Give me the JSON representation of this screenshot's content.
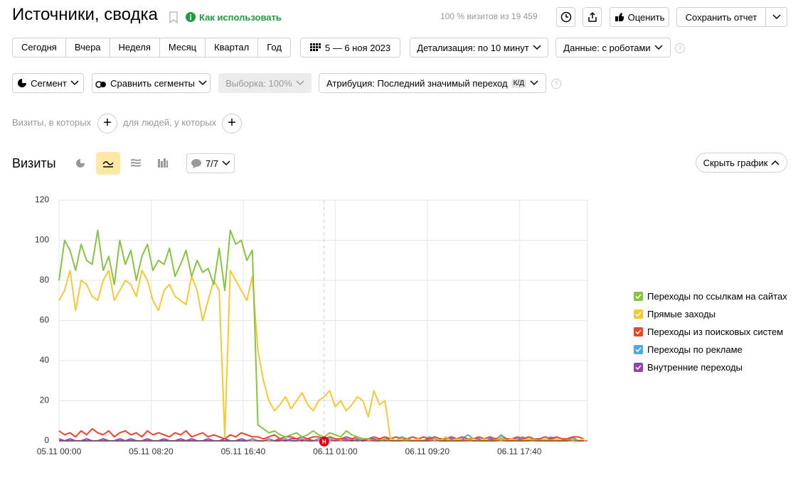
{
  "header": {
    "title": "Источники, сводка",
    "help": "Как использовать",
    "visits_share": "100 % визитов из 19 459",
    "rate": "Оценить",
    "save": "Сохранить отчет"
  },
  "periods": [
    "Сегодня",
    "Вчера",
    "Неделя",
    "Месяц",
    "Квартал",
    "Год"
  ],
  "date_range": "5 — 6 ноя 2023",
  "detail": "Детализация: по 10 минут",
  "data_mode": "Данные: с роботами",
  "segment": "Сегмент",
  "compare": "Сравнить сегменты",
  "sample": "Выборка: 100%",
  "attribution": "Атрибуция: Последний значимый переход",
  "attribution_badge": "К/Д",
  "filters": {
    "visits": "Визиты, в которых",
    "people": "для людей, у которых"
  },
  "report": {
    "title": "Визиты",
    "series_count": "7/7",
    "hide": "Скрыть график"
  },
  "chart_data": {
    "type": "line",
    "x": [
      0,
      30,
      60,
      90,
      120,
      150,
      180,
      210,
      240,
      270,
      300,
      330,
      360,
      390,
      420,
      450,
      480,
      510,
      540,
      570,
      600,
      630,
      660,
      690,
      720,
      750,
      780,
      810,
      840,
      870,
      900,
      930,
      960,
      990,
      1020,
      1050,
      1080,
      1110,
      1140,
      1170,
      1200,
      1230,
      1260,
      1290,
      1320,
      1350,
      1380,
      1410,
      1440,
      1470,
      1500,
      1530,
      1560,
      1590,
      1620,
      1650,
      1680,
      1710,
      1740,
      1770,
      1800,
      1830,
      1860,
      1890,
      1920,
      1950,
      1980,
      2010,
      2040,
      2070,
      2100,
      2130,
      2160,
      2190,
      2220,
      2250,
      2280,
      2310,
      2340,
      2370,
      2400,
      2430,
      2460,
      2490,
      2520,
      2550,
      2580,
      2610,
      2640,
      2670,
      2700,
      2730,
      2760,
      2790,
      2820,
      2850
    ],
    "xlim": [
      0,
      2870
    ],
    "xticks": [
      {
        "value": 0,
        "label": "05.11 00:00"
      },
      {
        "value": 500,
        "label": "05.11 08:20"
      },
      {
        "value": 1000,
        "label": "05.11 16:40"
      },
      {
        "value": 1500,
        "label": "06.11 01:00"
      },
      {
        "value": 2000,
        "label": "06.11 09:20"
      },
      {
        "value": 2500,
        "label": "06.11 17:40"
      }
    ],
    "ylim": [
      0,
      120
    ],
    "yticks": [
      0,
      20,
      40,
      60,
      80,
      100,
      120
    ],
    "grid": true,
    "annotation": {
      "x": 1440,
      "label": "Н",
      "color": "#e0001b"
    },
    "series": [
      {
        "name": "Переходы по ссылкам на сайтах",
        "color": "#86c441",
        "values": [
          80,
          100,
          95,
          85,
          98,
          90,
          88,
          105,
          85,
          92,
          78,
          100,
          88,
          95,
          80,
          92,
          98,
          85,
          90,
          88,
          96,
          82,
          88,
          95,
          82,
          90,
          84,
          86,
          78,
          96,
          75,
          105,
          98,
          100,
          90,
          95,
          8,
          6,
          4,
          5,
          3,
          2,
          3,
          4,
          2,
          3,
          5,
          3,
          2,
          4,
          3,
          2,
          5,
          3,
          2,
          1,
          1,
          0,
          0,
          1,
          0,
          0,
          0,
          1,
          0,
          0,
          0,
          0,
          1,
          0,
          0,
          0,
          0,
          0,
          1,
          0,
          0,
          0,
          0,
          0,
          1,
          0,
          0,
          0,
          0,
          0,
          1,
          0,
          0,
          0,
          0,
          0,
          0,
          1,
          0,
          0
        ]
      },
      {
        "name": "Прямые заходы",
        "color": "#f7c832",
        "values": [
          70,
          75,
          85,
          65,
          80,
          78,
          72,
          70,
          80,
          85,
          70,
          75,
          80,
          78,
          72,
          85,
          80,
          70,
          65,
          75,
          78,
          72,
          70,
          68,
          82,
          75,
          60,
          70,
          80,
          75,
          2,
          85,
          80,
          75,
          70,
          82,
          45,
          30,
          20,
          15,
          18,
          22,
          16,
          20,
          24,
          18,
          15,
          20,
          22,
          25,
          17,
          20,
          15,
          18,
          22,
          20,
          12,
          25,
          18,
          20,
          1,
          0,
          1,
          0,
          0,
          1,
          0,
          0,
          1,
          0,
          2,
          0,
          1,
          0,
          0,
          1,
          0,
          1,
          0,
          0,
          2,
          0,
          1,
          0,
          0,
          1,
          0,
          0,
          1,
          0,
          1,
          0,
          0,
          1,
          0,
          1
        ]
      },
      {
        "name": "Переходы из поисковых систем",
        "color": "#f0442a",
        "values": [
          5,
          3,
          4,
          2,
          5,
          3,
          6,
          4,
          3,
          5,
          2,
          4,
          5,
          3,
          4,
          2,
          5,
          3,
          4,
          3,
          2,
          4,
          3,
          5,
          2,
          3,
          4,
          2,
          3,
          2,
          1,
          3,
          2,
          4,
          3,
          2,
          2,
          1,
          2,
          3,
          1,
          2,
          2,
          1,
          2,
          1,
          2,
          2,
          1,
          2,
          1,
          1,
          2,
          1,
          2,
          1,
          1,
          2,
          1,
          2,
          1,
          2,
          1,
          1,
          2,
          1,
          2,
          1,
          2,
          1,
          1,
          2,
          1,
          2,
          1,
          1,
          2,
          1,
          2,
          1,
          2,
          1,
          1,
          2,
          1,
          2,
          1,
          1,
          2,
          1,
          2,
          1,
          1,
          2,
          2,
          1
        ]
      },
      {
        "name": "Переходы по рекламе",
        "color": "#4fa8e8",
        "values": [
          0,
          0,
          0,
          0,
          0,
          0,
          0,
          0,
          0,
          0,
          0,
          0,
          0,
          0,
          0,
          0,
          0,
          0,
          0,
          0,
          0,
          0,
          0,
          0,
          0,
          0,
          0,
          0,
          0,
          0,
          0,
          0,
          0,
          0,
          0,
          1,
          0,
          0,
          1,
          0,
          0,
          1,
          0,
          0,
          1,
          0,
          0,
          1,
          0,
          1,
          0,
          1,
          0,
          1,
          0,
          1,
          1,
          0,
          1,
          0,
          1,
          0,
          2,
          1,
          0,
          1,
          0,
          2,
          1,
          0,
          1,
          2,
          0,
          1,
          3,
          1,
          0,
          1,
          2,
          0,
          3,
          1,
          0,
          1,
          2,
          0,
          1,
          1,
          0,
          2,
          1,
          0,
          1,
          2,
          0,
          1
        ]
      },
      {
        "name": "Внутренние переходы",
        "color": "#8e44ad",
        "values": [
          1,
          0,
          1,
          0,
          0,
          1,
          0,
          0,
          1,
          0,
          0,
          1,
          0,
          1,
          0,
          0,
          1,
          0,
          0,
          1,
          0,
          0,
          1,
          0,
          1,
          0,
          0,
          1,
          0,
          0,
          1,
          0,
          0,
          1,
          0,
          1,
          0,
          0,
          1,
          0,
          1,
          0,
          1,
          1,
          0,
          1,
          0,
          1,
          0,
          1,
          0,
          1,
          1,
          0,
          1,
          0,
          1,
          1,
          0,
          1,
          1,
          0,
          1,
          1,
          0,
          1,
          0,
          1,
          1,
          0,
          1,
          1,
          0,
          1,
          0,
          1,
          1,
          0,
          1,
          0,
          1,
          0,
          1,
          1,
          0,
          1,
          0,
          1,
          0,
          1,
          1,
          0,
          1,
          1,
          0,
          1
        ]
      }
    ]
  }
}
